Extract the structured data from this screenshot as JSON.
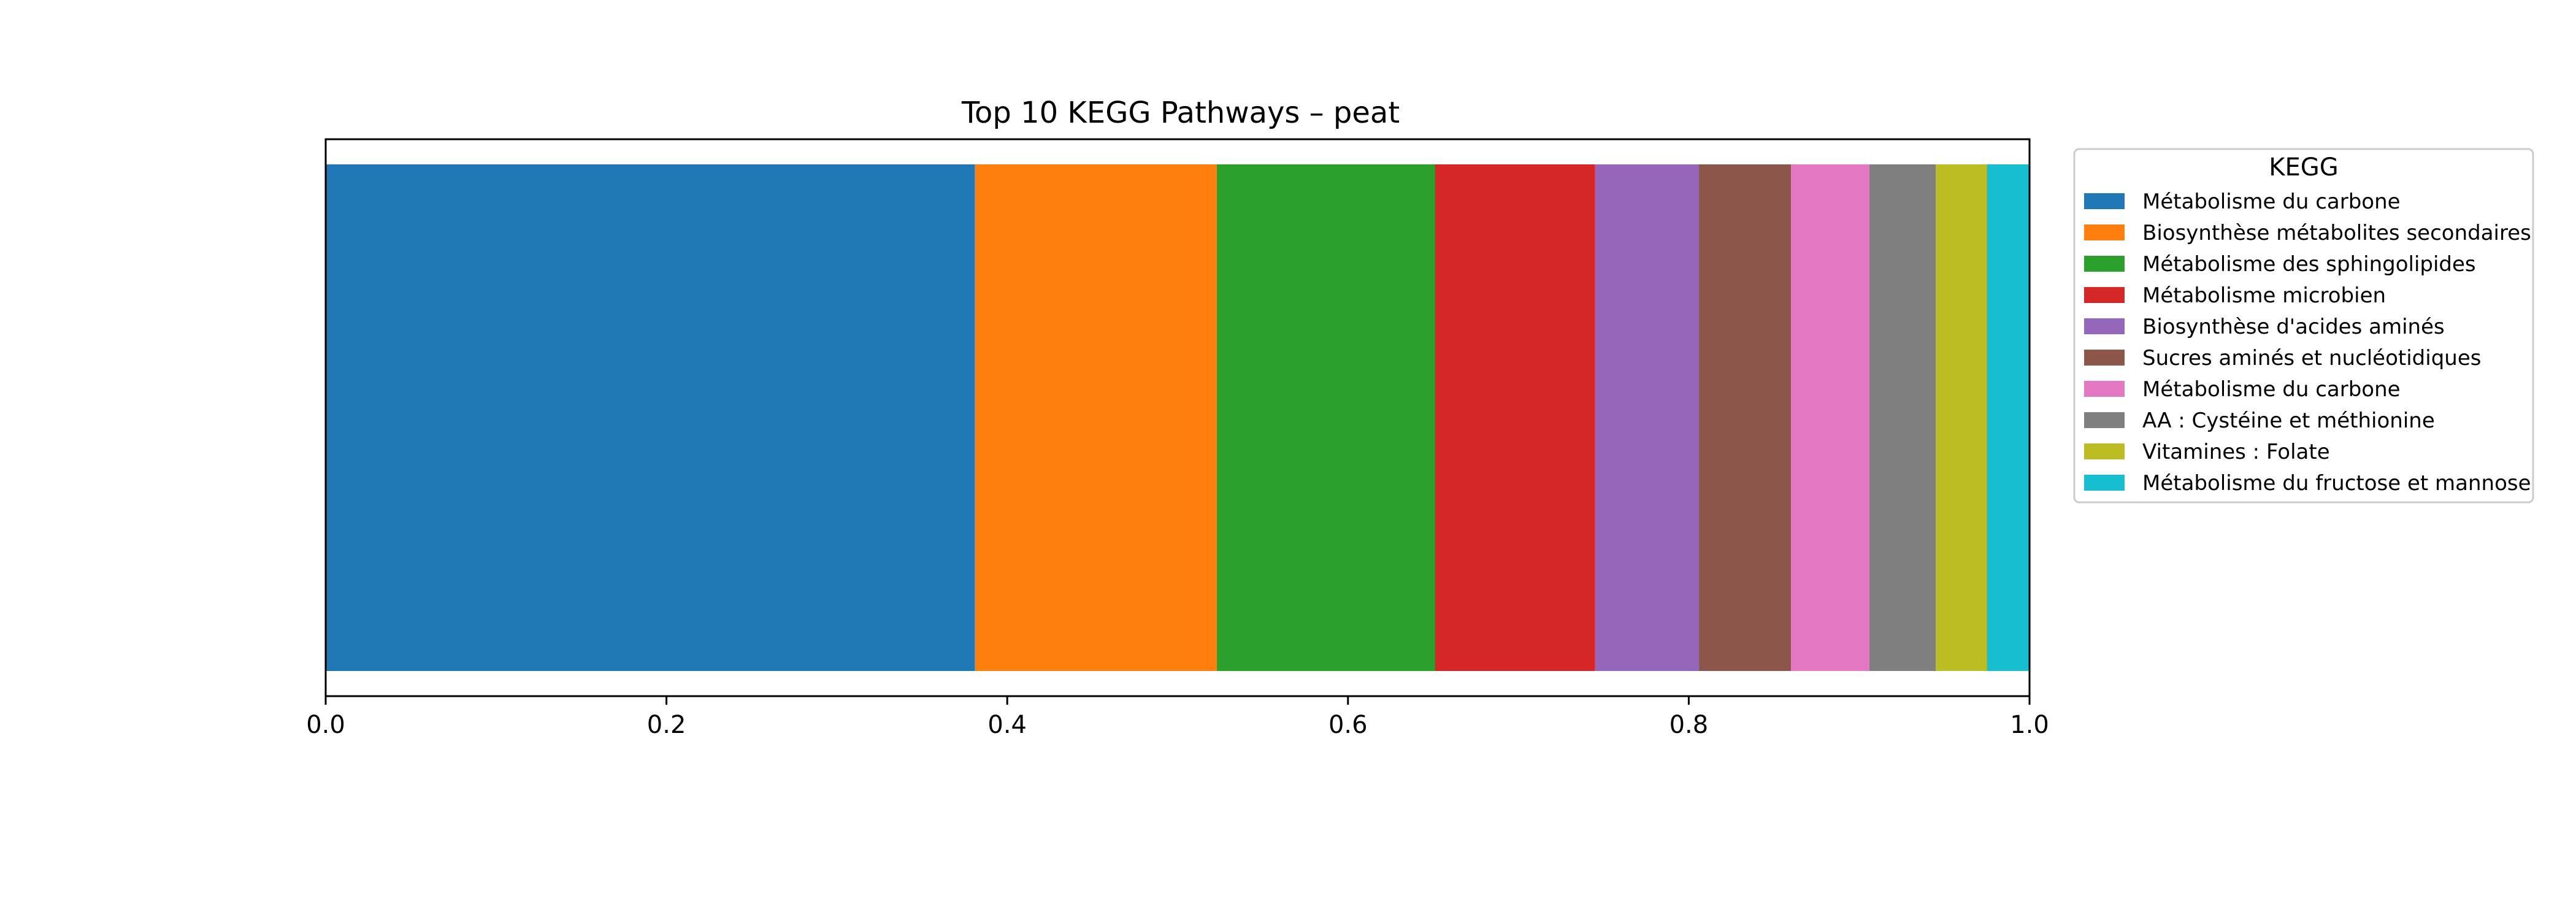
{
  "chart_data": {
    "type": "bar",
    "orientation": "horizontal-stacked",
    "title": "Top 10 KEGG Pathways – peat",
    "xlabel": "",
    "ylabel": "",
    "xlim": [
      0,
      1.0
    ],
    "x_ticks": [
      "0.0",
      "0.2",
      "0.4",
      "0.6",
      "0.8",
      "1.0"
    ],
    "grid": false,
    "legend": {
      "title": "KEGG",
      "placement": "right-outside-top"
    },
    "series": [
      {
        "name": "Métabolisme du carbone",
        "value": 0.381,
        "color": "#1f77b4"
      },
      {
        "name": "Biosynthèse métabolites secondaires",
        "value": 0.142,
        "color": "#ff7f0e"
      },
      {
        "name": "Métabolisme des sphingolipides",
        "value": 0.128,
        "color": "#2ca02c"
      },
      {
        "name": "Métabolisme microbien",
        "value": 0.094,
        "color": "#d62728"
      },
      {
        "name": "Biosynthèse d'acides aminés",
        "value": 0.061,
        "color": "#9467bd"
      },
      {
        "name": "Sucres aminés et nucléotidiques",
        "value": 0.054,
        "color": "#8c564b"
      },
      {
        "name": "Métabolisme du carbone",
        "value": 0.046,
        "color": "#e377c2"
      },
      {
        "name": "AA : Cystéine et méthionine",
        "value": 0.039,
        "color": "#7f7f7f"
      },
      {
        "name": "Vitamines : Folate",
        "value": 0.03,
        "color": "#bcbd22"
      },
      {
        "name": "Métabolisme du fructose et mannose",
        "value": 0.025,
        "color": "#17becf"
      }
    ]
  }
}
